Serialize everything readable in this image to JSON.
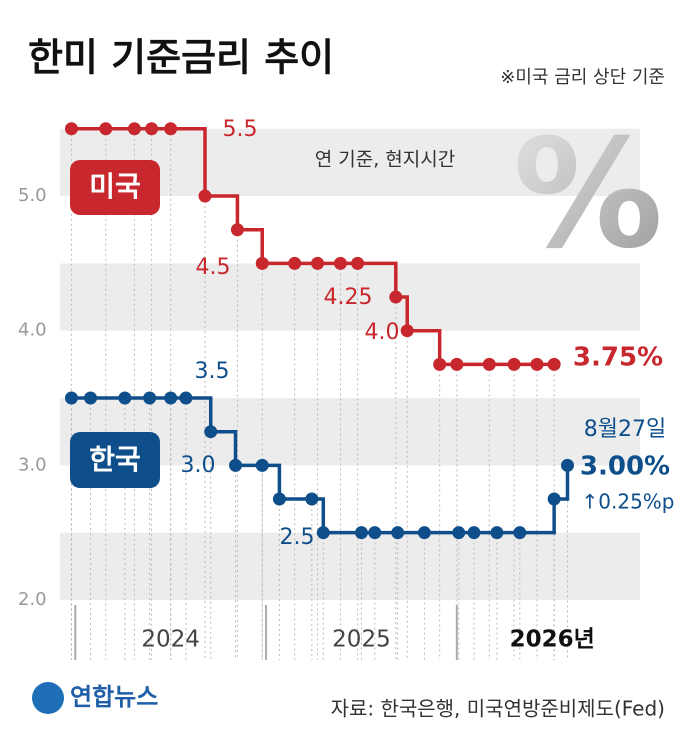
{
  "chart_data": {
    "type": "step",
    "title": "한미 기준금리 추이",
    "note": "※미국 금리 상단 기준",
    "subtitle": "연 기준, 현지시간",
    "decoration": "%",
    "xlim": [
      2023.92,
      2026.96
    ],
    "xticks": [
      2024,
      2025,
      {
        "value": 2026,
        "label": "2026년"
      }
    ],
    "ylim": [
      2.0,
      5.55
    ],
    "yticks": [
      {
        "value": 2,
        "label": "2.0"
      },
      {
        "value": 3,
        "label": "3.0"
      },
      {
        "value": 4,
        "label": "4.0"
      },
      {
        "value": 5,
        "label": "5.0"
      }
    ],
    "grid": true,
    "series": [
      {
        "name": "미국",
        "color": "#c8282d",
        "x": [
          2023.98,
          2024.16,
          2024.31,
          2024.4,
          2024.5,
          2024.68,
          2024.85,
          2024.98,
          2025.15,
          2025.27,
          2025.39,
          2025.48,
          2025.68,
          2025.74,
          2025.91,
          2026.0,
          2026.17,
          2026.3,
          2026.42,
          2026.51
        ],
        "values": [
          5.5,
          5.5,
          5.5,
          5.5,
          5.5,
          5.0,
          4.75,
          4.5,
          4.5,
          4.5,
          4.5,
          4.5,
          4.25,
          4.0,
          3.75,
          3.75,
          3.75,
          3.75,
          3.75,
          3.75
        ],
        "annotations": [
          "5.5",
          "4.5",
          "4.25",
          "4.0",
          "3.75%"
        ]
      },
      {
        "name": "한국",
        "color": "#0e4f8b",
        "x": [
          2023.98,
          2024.08,
          2024.26,
          2024.39,
          2024.5,
          2024.58,
          2024.71,
          2024.84,
          2024.98,
          2025.07,
          2025.24,
          2025.3,
          2025.5,
          2025.57,
          2025.69,
          2025.83,
          2026.01,
          2026.09,
          2026.21,
          2026.33,
          2026.51,
          2026.58
        ],
        "values": [
          3.5,
          3.5,
          3.5,
          3.5,
          3.5,
          3.5,
          3.25,
          3.0,
          3.0,
          2.75,
          2.75,
          2.5,
          2.5,
          2.5,
          2.5,
          2.5,
          2.5,
          2.5,
          2.5,
          2.5,
          2.75,
          3.0
        ],
        "annotations": [
          "3.5",
          "3.0",
          "2.5",
          "8월27일",
          "3.00%",
          "↑0.25%p"
        ]
      }
    ],
    "logo": "연합뉴스",
    "source": "자료: 한국은행, 미국연방준비제도(Fed)"
  }
}
